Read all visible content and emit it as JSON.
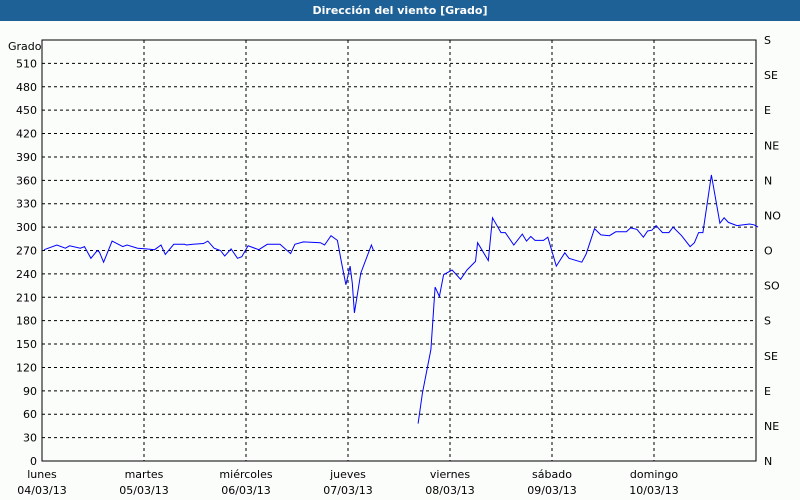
{
  "window": {
    "title": "Dirección del viento [Grado]"
  },
  "chart_data": {
    "type": "line",
    "title": "Dirección del viento [Grado]",
    "ylabel": "Grado",
    "ylim": [
      0,
      540
    ],
    "yticks": [
      0,
      30,
      60,
      90,
      120,
      150,
      180,
      210,
      240,
      270,
      300,
      330,
      360,
      390,
      420,
      450,
      480,
      510
    ],
    "right_axis_labels": [
      {
        "value": 0,
        "label": "N"
      },
      {
        "value": 45,
        "label": "NE"
      },
      {
        "value": 90,
        "label": "E"
      },
      {
        "value": 135,
        "label": "SE"
      },
      {
        "value": 180,
        "label": "S"
      },
      {
        "value": 225,
        "label": "SO"
      },
      {
        "value": 270,
        "label": "O"
      },
      {
        "value": 315,
        "label": "NO"
      },
      {
        "value": 360,
        "label": "N"
      },
      {
        "value": 405,
        "label": "NE"
      },
      {
        "value": 450,
        "label": "E"
      },
      {
        "value": 495,
        "label": "SE"
      },
      {
        "value": 540,
        "label": "S"
      }
    ],
    "xlim": [
      "04/03/13 00:00",
      "11/03/13 00:00"
    ],
    "xticks": [
      {
        "day": "lunes",
        "date": "04/03/13"
      },
      {
        "day": "martes",
        "date": "05/03/13"
      },
      {
        "day": "miércoles",
        "date": "06/03/13"
      },
      {
        "day": "jueves",
        "date": "07/03/13"
      },
      {
        "day": "viernes",
        "date": "08/03/13"
      },
      {
        "day": "sábado",
        "date": "09/03/13"
      },
      {
        "day": "domingo",
        "date": "10/03/13"
      }
    ],
    "grid": true,
    "line_color": "#0000ff",
    "segments": [
      [
        [
          "04/03/13 00:30",
          271
        ],
        [
          "04/03/13 03:30",
          277
        ],
        [
          "04/03/13 05:30",
          273
        ],
        [
          "04/03/13 06:30",
          276
        ],
        [
          "04/03/13 09:00",
          273
        ],
        [
          "04/03/13 10:00",
          275
        ],
        [
          "04/03/13 11:30",
          260
        ],
        [
          "04/03/13 13:00",
          270
        ],
        [
          "04/03/13 13:30",
          268
        ],
        [
          "04/03/13 14:30",
          255
        ],
        [
          "04/03/13 16:30",
          282
        ],
        [
          "04/03/13 19:00",
          275
        ],
        [
          "04/03/13 20:00",
          277
        ],
        [
          "04/03/13 22:30",
          273
        ],
        [
          "05/03/13 00:30",
          272
        ],
        [
          "05/03/13 02:30",
          271
        ],
        [
          "05/03/13 04:00",
          277
        ],
        [
          "05/03/13 05:00",
          265
        ],
        [
          "05/03/13 07:00",
          278
        ],
        [
          "05/03/13 09:30",
          278
        ],
        [
          "05/03/13 10:00",
          277
        ],
        [
          "05/03/13 11:30",
          278
        ],
        [
          "05/03/13 14:00",
          279
        ],
        [
          "05/03/13 15:00",
          282
        ],
        [
          "05/03/13 16:30",
          273
        ],
        [
          "05/03/13 18:00",
          270
        ],
        [
          "05/03/13 19:00",
          263
        ],
        [
          "05/03/13 20:30",
          272
        ],
        [
          "05/03/13 22:00",
          260
        ],
        [
          "05/03/13 23:00",
          262
        ],
        [
          "06/03/13 00:30",
          276
        ],
        [
          "06/03/13 03:00",
          271
        ],
        [
          "06/03/13 05:00",
          278
        ],
        [
          "06/03/13 08:00",
          278
        ],
        [
          "06/03/13 10:30",
          266
        ],
        [
          "06/03/13 11:30",
          278
        ],
        [
          "06/03/13 13:30",
          281
        ],
        [
          "06/03/13 17:30",
          280
        ],
        [
          "06/03/13 18:30",
          277
        ],
        [
          "06/03/13 20:00",
          289
        ],
        [
          "06/03/13 21:30",
          283
        ],
        [
          "06/03/13 22:30",
          254
        ],
        [
          "06/03/13 23:30",
          226
        ],
        [
          "07/03/13 00:30",
          250
        ],
        [
          "07/03/13 01:00",
          228
        ],
        [
          "07/03/13 01:30",
          190
        ],
        [
          "07/03/13 03:00",
          241
        ],
        [
          "07/03/13 05:30",
          277
        ],
        [
          "07/03/13 06:00",
          270
        ]
      ],
      [
        [
          "07/03/13 16:30",
          48
        ],
        [
          "07/03/13 17:30",
          87
        ],
        [
          "07/03/13 19:30",
          143
        ],
        [
          "07/03/13 20:30",
          223
        ],
        [
          "07/03/13 21:30",
          211
        ],
        [
          "07/03/13 22:30",
          239
        ],
        [
          "08/03/13 00:30",
          245
        ],
        [
          "08/03/13 02:30",
          233
        ],
        [
          "08/03/13 04:00",
          245
        ],
        [
          "08/03/13 06:00",
          256
        ],
        [
          "08/03/13 06:30",
          280
        ],
        [
          "08/03/13 09:00",
          257
        ],
        [
          "08/03/13 10:00",
          312
        ],
        [
          "08/03/13 12:00",
          293
        ],
        [
          "08/03/13 13:00",
          293
        ],
        [
          "08/03/13 15:00",
          277
        ],
        [
          "08/03/13 17:00",
          291
        ],
        [
          "08/03/13 18:00",
          282
        ],
        [
          "08/03/13 19:00",
          288
        ],
        [
          "08/03/13 20:00",
          283
        ],
        [
          "08/03/13 22:00",
          283
        ],
        [
          "08/03/13 23:00",
          287
        ],
        [
          "09/03/13 01:00",
          250
        ],
        [
          "09/03/13 03:00",
          267
        ],
        [
          "09/03/13 04:00",
          260
        ],
        [
          "09/03/13 07:00",
          255
        ],
        [
          "09/03/13 08:00",
          265
        ],
        [
          "09/03/13 10:00",
          298
        ],
        [
          "09/03/13 11:30",
          290
        ],
        [
          "09/03/13 13:30",
          289
        ],
        [
          "09/03/13 15:00",
          294
        ],
        [
          "09/03/13 17:30",
          294
        ],
        [
          "09/03/13 18:30",
          299
        ],
        [
          "09/03/13 20:00",
          297
        ],
        [
          "09/03/13 21:30",
          287
        ],
        [
          "09/03/13 22:30",
          295
        ],
        [
          "09/03/13 23:30",
          296
        ],
        [
          "10/03/13 00:30",
          302
        ],
        [
          "10/03/13 02:00",
          293
        ],
        [
          "10/03/13 03:30",
          293
        ],
        [
          "10/03/13 04:30",
          300
        ],
        [
          "10/03/13 06:30",
          289
        ],
        [
          "10/03/13 08:30",
          275
        ],
        [
          "10/03/13 09:30",
          280
        ],
        [
          "10/03/13 10:30",
          293
        ],
        [
          "10/03/13 11:30",
          293
        ],
        [
          "10/03/13 13:30",
          367
        ],
        [
          "10/03/13 15:30",
          305
        ],
        [
          "10/03/13 16:30",
          312
        ],
        [
          "10/03/13 17:30",
          306
        ],
        [
          "10/03/13 19:30",
          302
        ],
        [
          "10/03/13 22:30",
          304
        ],
        [
          "10/03/13 23:30",
          303
        ],
        [
          "11/03/13 00:30",
          300
        ]
      ]
    ]
  }
}
